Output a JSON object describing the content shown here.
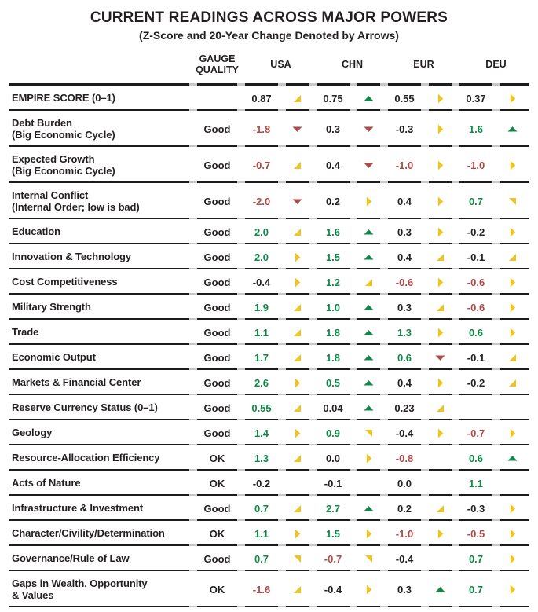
{
  "title": "CURRENT READINGS ACROSS MAJOR POWERS",
  "subtitle": "(Z-Score and 20-Year Change Denoted by Arrows)",
  "columns": {
    "gauge": "GAUGE QUALITY",
    "countries": [
      "USA",
      "CHN",
      "EUR",
      "DEU"
    ]
  },
  "palette": {
    "black": "#231F20",
    "green": "#0E8A45",
    "red": "#B04A47",
    "yellow": "#F0C41E"
  },
  "chart_data": {
    "type": "table",
    "title": "CURRENT READINGS ACROSS MAJOR POWERS",
    "subtitle": "(Z-Score and 20-Year Change Denoted by Arrows)",
    "columns": [
      "GAUGE QUALITY",
      "USA",
      "CHN",
      "EUR",
      "DEU"
    ],
    "notes": "Each country column shows a z-score value (color = good/neutral/bad) and an arrow denoting 20-year change (up, up-right, right, down-right, down).",
    "rows": [
      {
        "label": "EMPIRE SCORE (0–1)",
        "sublabel": "",
        "gauge": "",
        "cells": [
          {
            "value": "0.87",
            "value_color": "black",
            "arrow": "up-right",
            "arrow_color": "yellow"
          },
          {
            "value": "0.75",
            "value_color": "black",
            "arrow": "up",
            "arrow_color": "green"
          },
          {
            "value": "0.55",
            "value_color": "black",
            "arrow": "right",
            "arrow_color": "yellow"
          },
          {
            "value": "0.37",
            "value_color": "black",
            "arrow": "right",
            "arrow_color": "yellow"
          }
        ]
      },
      {
        "label": "Debt Burden",
        "sublabel": "(Big Economic Cycle)",
        "gauge": "Good",
        "cells": [
          {
            "value": "-1.8",
            "value_color": "red",
            "arrow": "down",
            "arrow_color": "red"
          },
          {
            "value": "0.3",
            "value_color": "black",
            "arrow": "down",
            "arrow_color": "red"
          },
          {
            "value": "-0.3",
            "value_color": "black",
            "arrow": "right",
            "arrow_color": "yellow"
          },
          {
            "value": "1.6",
            "value_color": "green",
            "arrow": "up",
            "arrow_color": "green"
          }
        ]
      },
      {
        "label": "Expected Growth",
        "sublabel": "(Big Economic Cycle)",
        "gauge": "Good",
        "cells": [
          {
            "value": "-0.7",
            "value_color": "red",
            "arrow": "up-right",
            "arrow_color": "yellow"
          },
          {
            "value": "0.4",
            "value_color": "black",
            "arrow": "down",
            "arrow_color": "red"
          },
          {
            "value": "-1.0",
            "value_color": "red",
            "arrow": "right",
            "arrow_color": "yellow"
          },
          {
            "value": "-1.0",
            "value_color": "red",
            "arrow": "right",
            "arrow_color": "yellow"
          }
        ]
      },
      {
        "label": "Internal Conflict",
        "sublabel": "(Internal Order; low is bad)",
        "gauge": "Good",
        "cells": [
          {
            "value": "-2.0",
            "value_color": "red",
            "arrow": "down",
            "arrow_color": "red"
          },
          {
            "value": "0.2",
            "value_color": "black",
            "arrow": "right",
            "arrow_color": "yellow"
          },
          {
            "value": "0.4",
            "value_color": "black",
            "arrow": "right",
            "arrow_color": "yellow"
          },
          {
            "value": "0.7",
            "value_color": "green",
            "arrow": "down-right",
            "arrow_color": "yellow"
          }
        ]
      },
      {
        "label": "Education",
        "sublabel": "",
        "gauge": "Good",
        "cells": [
          {
            "value": "2.0",
            "value_color": "green",
            "arrow": "up-right",
            "arrow_color": "yellow"
          },
          {
            "value": "1.6",
            "value_color": "green",
            "arrow": "up",
            "arrow_color": "green"
          },
          {
            "value": "0.3",
            "value_color": "black",
            "arrow": "right",
            "arrow_color": "yellow"
          },
          {
            "value": "-0.2",
            "value_color": "black",
            "arrow": "right",
            "arrow_color": "yellow"
          }
        ]
      },
      {
        "label": "Innovation & Technology",
        "sublabel": "",
        "gauge": "Good",
        "cells": [
          {
            "value": "2.0",
            "value_color": "green",
            "arrow": "right",
            "arrow_color": "yellow"
          },
          {
            "value": "1.5",
            "value_color": "green",
            "arrow": "up",
            "arrow_color": "green"
          },
          {
            "value": "0.4",
            "value_color": "black",
            "arrow": "up-right",
            "arrow_color": "yellow"
          },
          {
            "value": "-0.1",
            "value_color": "black",
            "arrow": "up-right",
            "arrow_color": "yellow"
          }
        ]
      },
      {
        "label": "Cost Competitiveness",
        "sublabel": "",
        "gauge": "Good",
        "cells": [
          {
            "value": "-0.4",
            "value_color": "black",
            "arrow": "right",
            "arrow_color": "yellow"
          },
          {
            "value": "1.2",
            "value_color": "green",
            "arrow": "up-right",
            "arrow_color": "yellow"
          },
          {
            "value": "-0.6",
            "value_color": "red",
            "arrow": "right",
            "arrow_color": "yellow"
          },
          {
            "value": "-0.6",
            "value_color": "red",
            "arrow": "right",
            "arrow_color": "yellow"
          }
        ]
      },
      {
        "label": "Military Strength",
        "sublabel": "",
        "gauge": "Good",
        "cells": [
          {
            "value": "1.9",
            "value_color": "green",
            "arrow": "up-right",
            "arrow_color": "yellow"
          },
          {
            "value": "1.0",
            "value_color": "green",
            "arrow": "up",
            "arrow_color": "green"
          },
          {
            "value": "0.3",
            "value_color": "black",
            "arrow": "up-right",
            "arrow_color": "yellow"
          },
          {
            "value": "-0.6",
            "value_color": "red",
            "arrow": "right",
            "arrow_color": "yellow"
          }
        ]
      },
      {
        "label": "Trade",
        "sublabel": "",
        "gauge": "Good",
        "cells": [
          {
            "value": "1.1",
            "value_color": "green",
            "arrow": "up-right",
            "arrow_color": "yellow"
          },
          {
            "value": "1.8",
            "value_color": "green",
            "arrow": "up",
            "arrow_color": "green"
          },
          {
            "value": "1.3",
            "value_color": "green",
            "arrow": "right",
            "arrow_color": "yellow"
          },
          {
            "value": "0.6",
            "value_color": "green",
            "arrow": "right",
            "arrow_color": "yellow"
          }
        ]
      },
      {
        "label": "Economic Output",
        "sublabel": "",
        "gauge": "Good",
        "cells": [
          {
            "value": "1.7",
            "value_color": "green",
            "arrow": "up-right",
            "arrow_color": "yellow"
          },
          {
            "value": "1.8",
            "value_color": "green",
            "arrow": "up",
            "arrow_color": "green"
          },
          {
            "value": "0.6",
            "value_color": "green",
            "arrow": "down",
            "arrow_color": "red"
          },
          {
            "value": "-0.1",
            "value_color": "black",
            "arrow": "up-right",
            "arrow_color": "yellow"
          }
        ]
      },
      {
        "label": "Markets & Financial Center",
        "sublabel": "",
        "gauge": "Good",
        "cells": [
          {
            "value": "2.6",
            "value_color": "green",
            "arrow": "right",
            "arrow_color": "yellow"
          },
          {
            "value": "0.5",
            "value_color": "green",
            "arrow": "up",
            "arrow_color": "green"
          },
          {
            "value": "0.4",
            "value_color": "black",
            "arrow": "right",
            "arrow_color": "yellow"
          },
          {
            "value": "-0.2",
            "value_color": "black",
            "arrow": "up-right",
            "arrow_color": "yellow"
          }
        ]
      },
      {
        "label": "Reserve Currency Status (0–1)",
        "sublabel": "",
        "gauge": "Good",
        "cells": [
          {
            "value": "0.55",
            "value_color": "green",
            "arrow": "up-right",
            "arrow_color": "yellow"
          },
          {
            "value": "0.04",
            "value_color": "black",
            "arrow": "up",
            "arrow_color": "green"
          },
          {
            "value": "0.23",
            "value_color": "black",
            "arrow": "up-right",
            "arrow_color": "yellow"
          },
          {
            "value": "",
            "value_color": "black",
            "arrow": null,
            "arrow_color": null
          }
        ]
      },
      {
        "label": "Geology",
        "sublabel": "",
        "gauge": "Good",
        "cells": [
          {
            "value": "1.4",
            "value_color": "green",
            "arrow": "right",
            "arrow_color": "yellow"
          },
          {
            "value": "0.9",
            "value_color": "green",
            "arrow": "down-right",
            "arrow_color": "yellow"
          },
          {
            "value": "-0.4",
            "value_color": "black",
            "arrow": "right",
            "arrow_color": "yellow"
          },
          {
            "value": "-0.7",
            "value_color": "red",
            "arrow": "right",
            "arrow_color": "yellow"
          }
        ]
      },
      {
        "label": "Resource-Allocation Efficiency",
        "sublabel": "",
        "gauge": "OK",
        "cells": [
          {
            "value": "1.3",
            "value_color": "green",
            "arrow": "up-right",
            "arrow_color": "yellow"
          },
          {
            "value": "0.0",
            "value_color": "black",
            "arrow": "right",
            "arrow_color": "yellow"
          },
          {
            "value": "-0.8",
            "value_color": "red",
            "arrow": null,
            "arrow_color": null
          },
          {
            "value": "0.6",
            "value_color": "green",
            "arrow": "up",
            "arrow_color": "green"
          }
        ]
      },
      {
        "label": "Acts of Nature",
        "sublabel": "",
        "gauge": "OK",
        "cells": [
          {
            "value": "-0.2",
            "value_color": "black",
            "arrow": null,
            "arrow_color": null
          },
          {
            "value": "-0.1",
            "value_color": "black",
            "arrow": null,
            "arrow_color": null
          },
          {
            "value": "0.0",
            "value_color": "black",
            "arrow": null,
            "arrow_color": null
          },
          {
            "value": "1.1",
            "value_color": "green",
            "arrow": null,
            "arrow_color": null
          }
        ]
      },
      {
        "label": "Infrastructure & Investment",
        "sublabel": "",
        "gauge": "Good",
        "cells": [
          {
            "value": "0.7",
            "value_color": "green",
            "arrow": "up-right",
            "arrow_color": "yellow"
          },
          {
            "value": "2.7",
            "value_color": "green",
            "arrow": "up",
            "arrow_color": "green"
          },
          {
            "value": "0.2",
            "value_color": "black",
            "arrow": "up-right",
            "arrow_color": "yellow"
          },
          {
            "value": "-0.3",
            "value_color": "black",
            "arrow": "right",
            "arrow_color": "yellow"
          }
        ]
      },
      {
        "label": "Character/Civility/Determination",
        "sublabel": "",
        "gauge": "OK",
        "cells": [
          {
            "value": "1.1",
            "value_color": "green",
            "arrow": "right",
            "arrow_color": "yellow"
          },
          {
            "value": "1.5",
            "value_color": "green",
            "arrow": "right",
            "arrow_color": "yellow"
          },
          {
            "value": "-1.0",
            "value_color": "red",
            "arrow": "right",
            "arrow_color": "yellow"
          },
          {
            "value": "-0.5",
            "value_color": "red",
            "arrow": "right",
            "arrow_color": "yellow"
          }
        ]
      },
      {
        "label": "Governance/Rule of Law",
        "sublabel": "",
        "gauge": "Good",
        "cells": [
          {
            "value": "0.7",
            "value_color": "green",
            "arrow": "down-right",
            "arrow_color": "yellow"
          },
          {
            "value": "-0.7",
            "value_color": "red",
            "arrow": "down-right",
            "arrow_color": "yellow"
          },
          {
            "value": "-0.4",
            "value_color": "black",
            "arrow": null,
            "arrow_color": null
          },
          {
            "value": "0.7",
            "value_color": "green",
            "arrow": "right",
            "arrow_color": "yellow"
          }
        ]
      },
      {
        "label": "Gaps in Wealth, Opportunity",
        "sublabel": "& Values",
        "gauge": "OK",
        "cells": [
          {
            "value": "-1.6",
            "value_color": "red",
            "arrow": "up-right",
            "arrow_color": "yellow"
          },
          {
            "value": "-0.4",
            "value_color": "black",
            "arrow": "right",
            "arrow_color": "yellow"
          },
          {
            "value": "0.3",
            "value_color": "black",
            "arrow": "up",
            "arrow_color": "green"
          },
          {
            "value": "0.7",
            "value_color": "green",
            "arrow": "right",
            "arrow_color": "yellow"
          }
        ]
      }
    ]
  }
}
